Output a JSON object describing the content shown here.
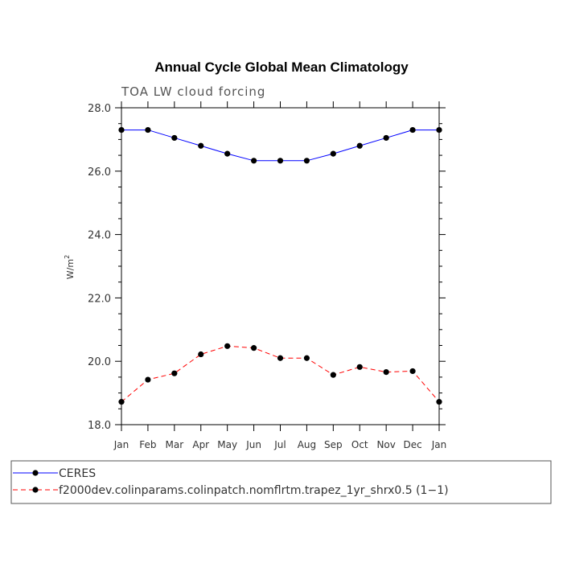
{
  "chart_data": {
    "type": "line",
    "title": "Annual Cycle Global Mean Climatology",
    "subtitle": "TOA LW cloud forcing",
    "ylabel": "W/m",
    "ylabel_sup": "2",
    "xlabel": "",
    "ylim": [
      18.0,
      28.0
    ],
    "yticks": [
      "18.0",
      "20.0",
      "22.0",
      "24.0",
      "26.0",
      "28.0"
    ],
    "categories": [
      "Jan",
      "Feb",
      "Mar",
      "Apr",
      "May",
      "Jun",
      "Jul",
      "Aug",
      "Sep",
      "Oct",
      "Nov",
      "Dec",
      "Jan"
    ],
    "series": [
      {
        "name": "CERES",
        "color": "#0000ff",
        "dash": "solid",
        "values": [
          27.3,
          27.3,
          27.05,
          26.8,
          26.55,
          26.33,
          26.33,
          26.33,
          26.55,
          26.8,
          27.05,
          27.3,
          27.3
        ]
      },
      {
        "name": "f2000dev.colinparams.colinpatch.nomflrtm.trapez_1yr_shrx0.5 (1−1)",
        "color": "#ff0000",
        "dash": "dashed",
        "values": [
          18.72,
          19.42,
          19.62,
          20.22,
          20.48,
          20.42,
          20.1,
          20.1,
          19.57,
          19.82,
          19.66,
          19.69,
          18.72
        ]
      }
    ],
    "legend_position": "bottom",
    "grid": false
  }
}
